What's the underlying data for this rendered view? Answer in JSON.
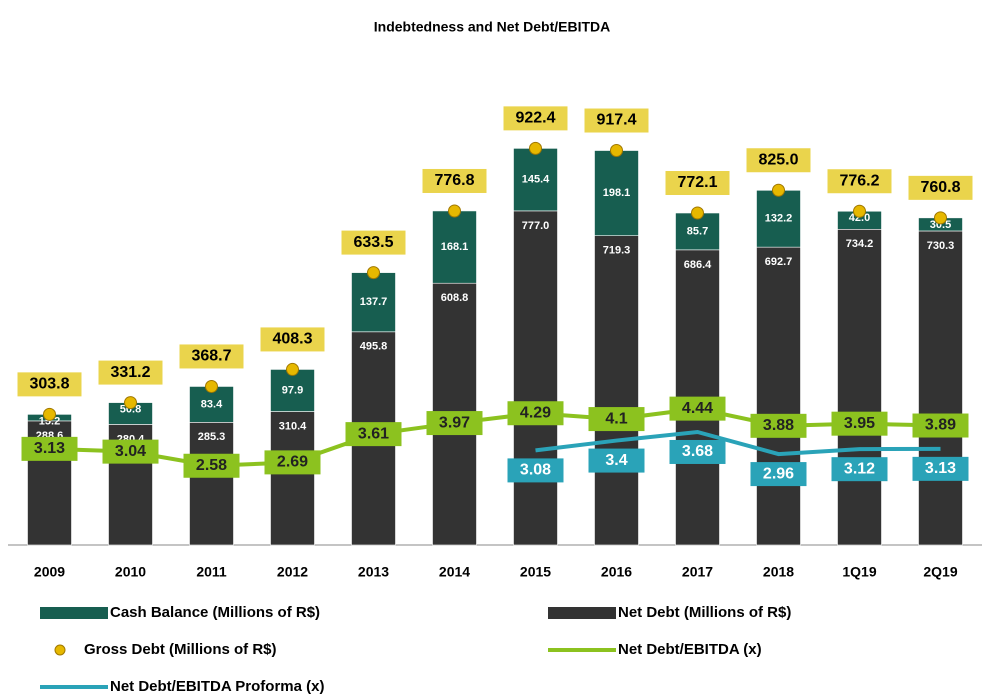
{
  "chart_data": {
    "type": "bar",
    "title": "Indebtedness and Net Debt/EBITDA",
    "categories": [
      "2009",
      "2010",
      "2011",
      "2012",
      "2013",
      "2014",
      "2015",
      "2016",
      "2017",
      "2018",
      "1Q19",
      "2Q19"
    ],
    "ylim": [
      0,
      1000
    ],
    "y2lim": [
      0,
      14
    ],
    "series": [
      {
        "name": "Net Debt (Millions of R$)",
        "type": "bar",
        "color": "#333333",
        "values": [
          288.6,
          280.4,
          285.3,
          310.4,
          495.8,
          608.8,
          777.0,
          719.3,
          686.4,
          692.7,
          734.2,
          730.3
        ],
        "value_labels": [
          "288.6",
          "280.4",
          "285.3",
          "310.4",
          "495.8",
          "608.8",
          "777.0",
          "719.3",
          "686.4",
          "692.7",
          "734.2",
          "730.3"
        ]
      },
      {
        "name": "Cash Balance (Millions of R$)",
        "type": "bar",
        "color": "#175e50",
        "values": [
          15.2,
          50.8,
          83.4,
          97.9,
          137.7,
          168.1,
          145.4,
          198.1,
          85.7,
          132.2,
          42.0,
          30.5
        ],
        "value_labels": [
          "15.2",
          "50.8",
          "83.4",
          "97.9",
          "137.7",
          "168.1",
          "145.4",
          "198.1",
          "85.7",
          "132.2",
          "42.0",
          "30.5"
        ]
      },
      {
        "name": "Gross Debt (Millions of R$)",
        "type": "scatter",
        "color": "#e6b800",
        "values": [
          303.8,
          331.2,
          368.7,
          408.3,
          633.5,
          776.8,
          922.4,
          917.4,
          772.1,
          825.0,
          776.2,
          760.8
        ],
        "value_labels": [
          "303.8",
          "331.2",
          "368.7",
          "408.3",
          "633.5",
          "776.8",
          "922.4",
          "917.4",
          "772.1",
          "825.0",
          "776.2",
          "760.8"
        ]
      },
      {
        "name": "Net Debt/EBITDA (x)",
        "type": "line",
        "axis": "y2",
        "color": "#8cc21f",
        "values": [
          3.13,
          3.04,
          2.58,
          2.69,
          3.61,
          3.97,
          4.29,
          4.1,
          4.44,
          3.88,
          3.95,
          3.89
        ]
      },
      {
        "name": "Net Debt/EBITDA Proforma (x)",
        "type": "line",
        "axis": "y2",
        "color": "#2aa3b8",
        "values": [
          null,
          null,
          null,
          null,
          null,
          null,
          3.08,
          3.4,
          3.68,
          2.96,
          3.12,
          3.13
        ]
      }
    ]
  }
}
